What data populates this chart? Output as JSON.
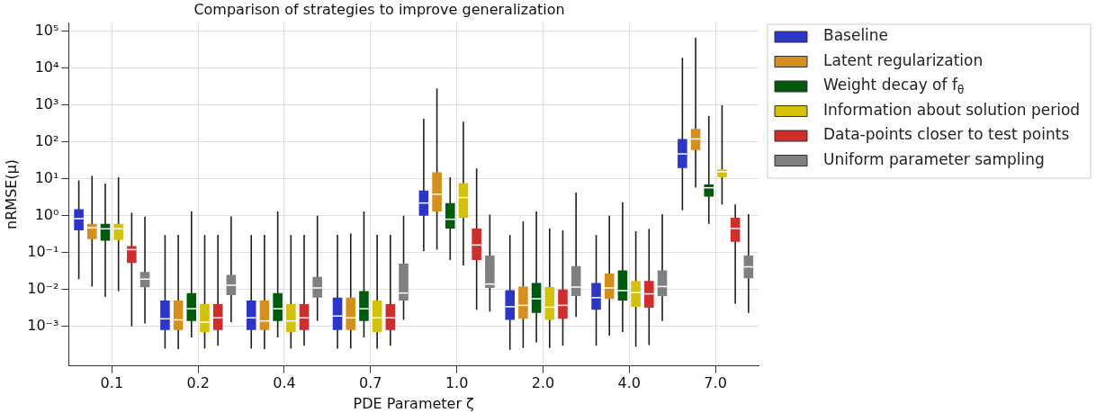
{
  "chart_data": {
    "type": "box",
    "title": "Comparison of strategies to improve generalization",
    "xlabel": "PDE Parameter ζ",
    "ylabel": "nRMSE(μ)",
    "categories": [
      "0.1",
      "0.2",
      "0.4",
      "0.7",
      "1.0",
      "2.0",
      "4.0",
      "7.0"
    ],
    "log": true,
    "grid": true,
    "legend": "right",
    "ylim": [
      8.5e-05,
      170000
    ],
    "yticks": [
      {
        "value": 0.001,
        "label": "10⁻³"
      },
      {
        "value": 0.01,
        "label": "10⁻²"
      },
      {
        "value": 0.1,
        "label": "10⁻¹"
      },
      {
        "value": 1,
        "label": "10⁰"
      },
      {
        "value": 10,
        "label": "10¹"
      },
      {
        "value": 100,
        "label": "10²"
      },
      {
        "value": 1000,
        "label": "10³"
      },
      {
        "value": 10000,
        "label": "10⁴"
      },
      {
        "value": 100000,
        "label": "10⁵"
      }
    ],
    "series": [
      {
        "name": "Baseline",
        "color": "#2b35c8",
        "boxes": [
          {
            "low": 0.019,
            "q1": 0.4,
            "median": 0.83,
            "q3": 1.5,
            "high": 9
          },
          {
            "low": 0.00025,
            "q1": 0.0008,
            "median": 0.0016,
            "q3": 0.005,
            "high": 0.3
          },
          {
            "low": 0.00025,
            "q1": 0.0008,
            "median": 0.0017,
            "q3": 0.005,
            "high": 0.3
          },
          {
            "low": 0.00025,
            "q1": 0.0008,
            "median": 0.0019,
            "q3": 0.006,
            "high": 0.3
          },
          {
            "low": 0.11,
            "q1": 1.0,
            "median": 2.2,
            "q3": 4.8,
            "high": 420
          },
          {
            "low": 0.00023,
            "q1": 0.0015,
            "median": 0.0034,
            "q3": 0.0095,
            "high": 0.3
          },
          {
            "low": 0.0003,
            "q1": 0.0028,
            "median": 0.006,
            "q3": 0.015,
            "high": 0.3
          },
          {
            "low": 1.4,
            "q1": 19.6,
            "median": 47,
            "q3": 120,
            "high": 19000
          }
        ]
      },
      {
        "name": "Latent regularization",
        "color": "#d48f1f",
        "boxes": [
          {
            "low": 0.012,
            "q1": 0.23,
            "median": 0.47,
            "q3": 0.6,
            "high": 12
          },
          {
            "low": 0.00024,
            "q1": 0.0008,
            "median": 0.0015,
            "q3": 0.005,
            "high": 0.3
          },
          {
            "low": 0.00024,
            "q1": 0.0008,
            "median": 0.0014,
            "q3": 0.005,
            "high": 0.3
          },
          {
            "low": 0.00025,
            "q1": 0.0008,
            "median": 0.0017,
            "q3": 0.006,
            "high": 0.33
          },
          {
            "low": 0.12,
            "q1": 1.3,
            "median": 3.8,
            "q3": 15,
            "high": 2800
          },
          {
            "low": 0.00026,
            "q1": 0.0016,
            "median": 0.0037,
            "q3": 0.012,
            "high": 0.7
          },
          {
            "low": 0.00056,
            "q1": 0.0055,
            "median": 0.011,
            "q3": 0.027,
            "high": 1.0
          },
          {
            "low": 5.8,
            "q1": 60,
            "median": 120,
            "q3": 225,
            "high": 66000
          }
        ]
      },
      {
        "name": "Weight decay of f$_{θ}$",
        "color": "#005a0e",
        "boxes": [
          {
            "low": 0.0063,
            "q1": 0.21,
            "median": 0.44,
            "q3": 0.6,
            "high": 7.4
          },
          {
            "low": 0.0005,
            "q1": 0.0014,
            "median": 0.003,
            "q3": 0.008,
            "high": 1.3
          },
          {
            "low": 0.0005,
            "q1": 0.0014,
            "median": 0.003,
            "q3": 0.008,
            "high": 1.3
          },
          {
            "low": 0.0005,
            "q1": 0.0014,
            "median": 0.003,
            "q3": 0.009,
            "high": 1.3
          },
          {
            "low": 0.063,
            "q1": 0.45,
            "median": 0.8,
            "q3": 2.2,
            "high": 11
          },
          {
            "low": 0.00037,
            "q1": 0.0023,
            "median": 0.0056,
            "q3": 0.015,
            "high": 1.3
          },
          {
            "low": 0.0007,
            "q1": 0.005,
            "median": 0.0093,
            "q3": 0.033,
            "high": 2.3
          },
          {
            "low": 0.6,
            "q1": 3.3,
            "median": 5.7,
            "q3": 7,
            "high": 500
          }
        ]
      },
      {
        "name": "Information about solution period",
        "color": "#d4c20a",
        "boxes": [
          {
            "low": 0.009,
            "q1": 0.22,
            "median": 0.44,
            "q3": 0.6,
            "high": 11
          },
          {
            "low": 0.00025,
            "q1": 0.0007,
            "median": 0.0013,
            "q3": 0.004,
            "high": 0.3
          },
          {
            "low": 0.00025,
            "q1": 0.0007,
            "median": 0.0014,
            "q3": 0.004,
            "high": 0.3
          },
          {
            "low": 0.00025,
            "q1": 0.0007,
            "median": 0.0017,
            "q3": 0.005,
            "high": 0.3
          },
          {
            "low": 0.045,
            "q1": 0.88,
            "median": 3.1,
            "q3": 7.6,
            "high": 350
          },
          {
            "low": 0.00026,
            "q1": 0.0015,
            "median": 0.0033,
            "q3": 0.0116,
            "high": 0.45
          },
          {
            "low": 0.00028,
            "q1": 0.0034,
            "median": 0.0082,
            "q3": 0.017,
            "high": 0.38
          },
          {
            "low": 2,
            "q1": 11,
            "median": 15.6,
            "q3": 18,
            "high": 980
          }
        ]
      },
      {
        "name": "Data-points closer to test points",
        "color": "#d12d2d",
        "boxes": [
          {
            "low": 0.001,
            "q1": 0.052,
            "median": 0.12,
            "q3": 0.15,
            "high": 1.2
          },
          {
            "low": 0.0003,
            "q1": 0.0008,
            "median": 0.0017,
            "q3": 0.004,
            "high": 0.3
          },
          {
            "low": 0.0003,
            "q1": 0.0008,
            "median": 0.0017,
            "q3": 0.004,
            "high": 0.3
          },
          {
            "low": 0.0003,
            "q1": 0.0008,
            "median": 0.0017,
            "q3": 0.004,
            "high": 0.3
          },
          {
            "low": 0.0028,
            "q1": 0.063,
            "median": 0.16,
            "q3": 0.45,
            "high": 19
          },
          {
            "low": 0.0003,
            "q1": 0.0016,
            "median": 0.0037,
            "q3": 0.01,
            "high": 0.4
          },
          {
            "low": 0.00031,
            "q1": 0.0032,
            "median": 0.0076,
            "q3": 0.017,
            "high": 0.44
          },
          {
            "low": 0.0041,
            "q1": 0.195,
            "median": 0.45,
            "q3": 0.88,
            "high": 2
          }
        ]
      },
      {
        "name": "Uniform parameter sampling",
        "color": "#808080",
        "boxes": [
          {
            "low": 0.0012,
            "q1": 0.0115,
            "median": 0.019,
            "q3": 0.03,
            "high": 0.94
          },
          {
            "low": 0.0013,
            "q1": 0.007,
            "median": 0.013,
            "q3": 0.025,
            "high": 0.95
          },
          {
            "low": 0.0014,
            "q1": 0.006,
            "median": 0.011,
            "q3": 0.022,
            "high": 1.0
          },
          {
            "low": 0.0015,
            "q1": 0.005,
            "median": 0.008,
            "q3": 0.05,
            "high": 1.0
          },
          {
            "low": 0.0025,
            "q1": 0.011,
            "median": 0.014,
            "q3": 0.083,
            "high": 1.07
          },
          {
            "low": 0.0018,
            "q1": 0.0066,
            "median": 0.0116,
            "q3": 0.043,
            "high": 4.2
          },
          {
            "low": 0.0014,
            "q1": 0.0066,
            "median": 0.012,
            "q3": 0.033,
            "high": 1.1
          },
          {
            "low": 0.0023,
            "q1": 0.02,
            "median": 0.041,
            "q3": 0.083,
            "high": 1.1
          }
        ]
      }
    ]
  }
}
